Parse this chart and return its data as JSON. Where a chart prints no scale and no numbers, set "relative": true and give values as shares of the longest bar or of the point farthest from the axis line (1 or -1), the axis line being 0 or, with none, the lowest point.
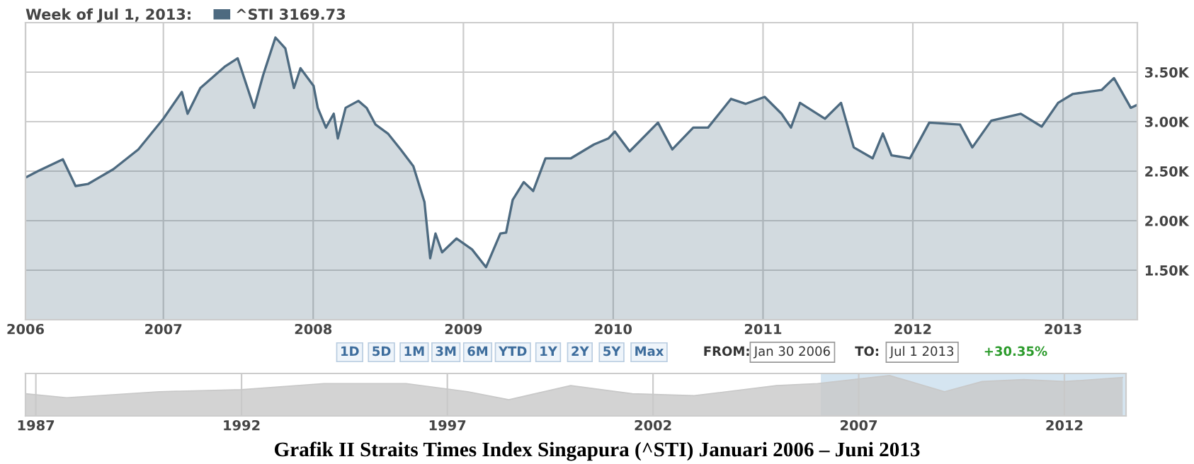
{
  "chart_data": [
    {
      "type": "area",
      "title": "Week of Jul 1, 2013:",
      "legend": "top left",
      "grid": true,
      "marker": "none",
      "line_style": "solid",
      "xlim": [
        "2006-01-30",
        "2013-07-01"
      ],
      "ylim": [
        1000,
        4000
      ],
      "xticks": [
        {
          "value": "2006-01-30",
          "label": "2006"
        },
        {
          "value": "2007-01-01",
          "label": "2007"
        },
        {
          "value": "2008-01-01",
          "label": "2008"
        },
        {
          "value": "2009-01-01",
          "label": "2009"
        },
        {
          "value": "2010-01-01",
          "label": "2010"
        },
        {
          "value": "2011-01-01",
          "label": "2011"
        },
        {
          "value": "2012-01-01",
          "label": "2012"
        },
        {
          "value": "2013-01-01",
          "label": "2013"
        }
      ],
      "yticks": [
        {
          "value": 1500,
          "label": "1.50K"
        },
        {
          "value": 2000,
          "label": "2.00K"
        },
        {
          "value": 2500,
          "label": "2.50K"
        },
        {
          "value": 3000,
          "label": "3.00K"
        },
        {
          "value": 3500,
          "label": "3.50K"
        }
      ],
      "series": [
        {
          "name": "^STI 3169.73",
          "color": "#4d6a80",
          "x": [
            "2006-02-01",
            "2006-03-01",
            "2006-05-01",
            "2006-06-01",
            "2006-07-01",
            "2006-09-01",
            "2006-11-01",
            "2007-01-01",
            "2007-02-15",
            "2007-03-01",
            "2007-04-01",
            "2007-06-01",
            "2007-07-01",
            "2007-08-10",
            "2007-09-01",
            "2007-10-01",
            "2007-10-25",
            "2007-11-15",
            "2007-12-01",
            "2008-01-02",
            "2008-01-12",
            "2008-02-01",
            "2008-02-20",
            "2008-03-01",
            "2008-03-20",
            "2008-04-20",
            "2008-05-10",
            "2008-06-01",
            "2008-07-01",
            "2008-08-01",
            "2008-09-01",
            "2008-09-28",
            "2008-10-12",
            "2008-10-25",
            "2008-11-10",
            "2008-12-15",
            "2009-01-22",
            "2009-02-25",
            "2009-04-01",
            "2009-04-15",
            "2009-05-01",
            "2009-05-28",
            "2009-06-20",
            "2009-07-20",
            "2009-09-20",
            "2009-11-15",
            "2009-12-20",
            "2010-01-05",
            "2010-02-10",
            "2010-04-20",
            "2010-05-25",
            "2010-07-15",
            "2010-08-20",
            "2010-10-15",
            "2010-11-20",
            "2011-01-05",
            "2011-02-15",
            "2011-03-10",
            "2011-04-01",
            "2011-06-01",
            "2011-07-10",
            "2011-08-10",
            "2011-09-25",
            "2011-10-20",
            "2011-11-10",
            "2011-12-25",
            "2012-02-10",
            "2012-04-25",
            "2012-05-25",
            "2012-07-10",
            "2012-09-20",
            "2012-11-10",
            "2012-12-20",
            "2013-01-25",
            "2013-04-05",
            "2013-05-05",
            "2013-06-15",
            "2013-07-01"
          ],
          "values": [
            2440,
            2500,
            2620,
            2350,
            2370,
            2520,
            2720,
            3030,
            3300,
            3080,
            3340,
            3560,
            3640,
            3140,
            3470,
            3850,
            3740,
            3340,
            3540,
            3360,
            3140,
            2940,
            3080,
            2830,
            3140,
            3210,
            3140,
            2970,
            2880,
            2720,
            2550,
            2190,
            1620,
            1870,
            1680,
            1820,
            1710,
            1530,
            1870,
            1880,
            2210,
            2390,
            2300,
            2630,
            2630,
            2770,
            2830,
            2900,
            2700,
            2990,
            2720,
            2940,
            2940,
            3230,
            3180,
            3250,
            3080,
            2940,
            3190,
            3030,
            3190,
            2740,
            2630,
            2880,
            2660,
            2630,
            2990,
            2970,
            2740,
            3010,
            3080,
            2950,
            3190,
            3280,
            3320,
            3440,
            3140,
            3170
          ]
        }
      ],
      "annotations": [
        "1D",
        "5D",
        "1M",
        "3M",
        "6M",
        "YTD",
        "1Y",
        "2Y",
        "5Y",
        "Max",
        "FROM:",
        "Jan 30 2006",
        "TO:",
        "Jul 1 2013",
        "+30.35%",
        "Grafik II Straits Times Index Singapura (^STI) Januari 2006 – Juni 2013"
      ]
    },
    {
      "type": "area",
      "relative": true,
      "grid": "x",
      "tick_labels": "x",
      "xlim": [
        "1986-10-01",
        "2013-07-01"
      ],
      "xticks": [
        {
          "value": "1987-01-01",
          "label": "1987"
        },
        {
          "value": "1992-01-01",
          "label": "1992"
        },
        {
          "value": "1997-01-01",
          "label": "1997"
        },
        {
          "value": "2002-01-01",
          "label": "2002"
        },
        {
          "value": "2007-01-01",
          "label": "2007"
        },
        {
          "value": "2012-01-01",
          "label": "2012"
        }
      ],
      "bands": [
        {
          "axis": "x",
          "from": "2006-01-30",
          "to": "2013-07-01",
          "color": "#d5e5f1"
        }
      ],
      "series": [
        {
          "color": "#c8c8c8",
          "x": [
            "1986-10-01",
            "1987-10-01",
            "1990-01-01",
            "1992-01-01",
            "1994-01-01",
            "1996-01-01",
            "1997-07-01",
            "1998-07-01",
            "2000-01-01",
            "2001-07-01",
            "2003-01-01",
            "2005-01-01",
            "2006-01-01",
            "2007-10-01",
            "2009-02-01",
            "2010-01-01",
            "2011-01-01",
            "2012-01-01",
            "2013-06-01"
          ],
          "values": [
            0.55,
            0.45,
            0.6,
            0.65,
            0.8,
            0.8,
            0.6,
            0.4,
            0.75,
            0.55,
            0.5,
            0.75,
            0.8,
            1.0,
            0.6,
            0.85,
            0.9,
            0.85,
            0.95
          ]
        }
      ]
    }
  ]
}
